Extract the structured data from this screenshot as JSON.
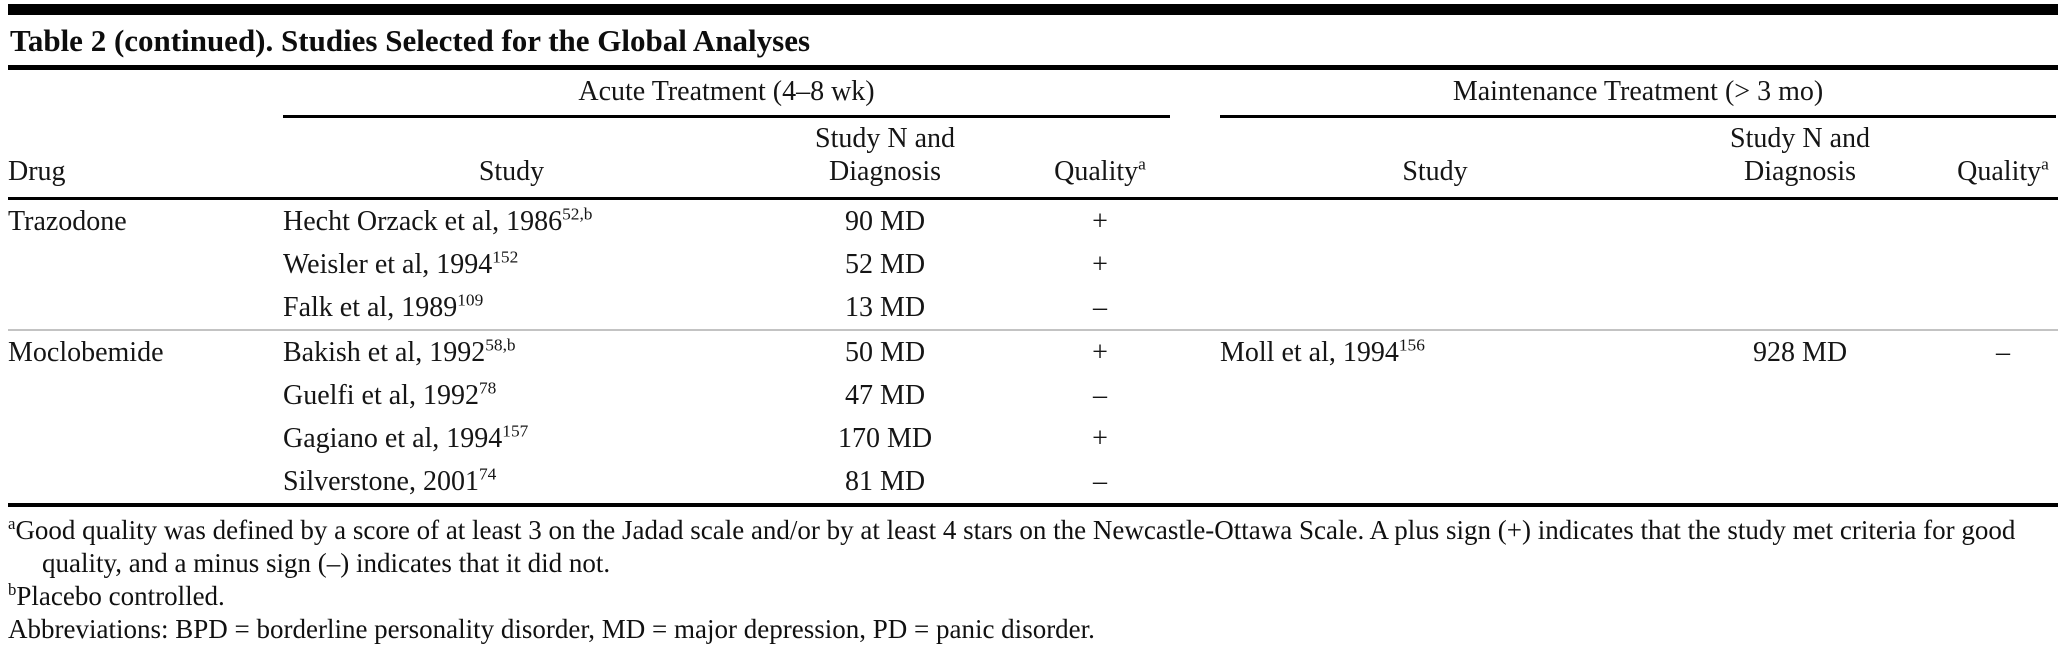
{
  "title": "Table 2 (continued). Studies Selected for the Global Analyses",
  "table": {
    "group_headers": [
      {
        "label": "Acute Treatment (4–8 wk)"
      },
      {
        "label": "Maintenance Treatment (> 3 mo)"
      }
    ],
    "columns": {
      "drug": "Drug",
      "study": "Study",
      "n_line1": "Study N and",
      "n_line2": "Diagnosis",
      "quality": "Quality",
      "quality_sup": "a"
    },
    "rows": [
      {
        "drug": "Trazodone",
        "acute": [
          {
            "study": "Hecht Orzack et al, 1986",
            "sup": "52,b",
            "n": "90 MD",
            "quality": "+"
          },
          {
            "study": "Weisler et al, 1994",
            "sup": "152",
            "n": "52 MD",
            "quality": "+"
          },
          {
            "study": "Falk et al, 1989",
            "sup": "109",
            "n": "13 MD",
            "quality": "–"
          }
        ],
        "maintenance": []
      },
      {
        "drug": "Moclobemide",
        "acute": [
          {
            "study": "Bakish et al, 1992",
            "sup": "58,b",
            "n": "50 MD",
            "quality": "+"
          },
          {
            "study": "Guelfi et al, 1992",
            "sup": "78",
            "n": "47 MD",
            "quality": "–"
          },
          {
            "study": "Gagiano et al, 1994",
            "sup": "157",
            "n": "170 MD",
            "quality": "+"
          },
          {
            "study": "Silverstone, 2001",
            "sup": "74",
            "n": "81 MD",
            "quality": "–"
          }
        ],
        "maintenance": [
          {
            "study": "Moll et al, 1994",
            "sup": "156",
            "n": "928 MD",
            "quality": "–"
          }
        ]
      }
    ]
  },
  "footnotes": [
    {
      "sup": "a",
      "text": "Good quality was defined by a score of at least 3 on the Jadad scale and/or by at least 4 stars on the Newcastle-Ottawa Scale. A plus sign (+) indicates that the study met criteria for good quality, and a minus sign (–) indicates that it did not."
    },
    {
      "sup": "b",
      "text": "Placebo controlled."
    },
    {
      "sup": "",
      "text": "Abbreviations: BPD = borderline personality disorder, MD = major depression, PD = panic disorder."
    }
  ]
}
